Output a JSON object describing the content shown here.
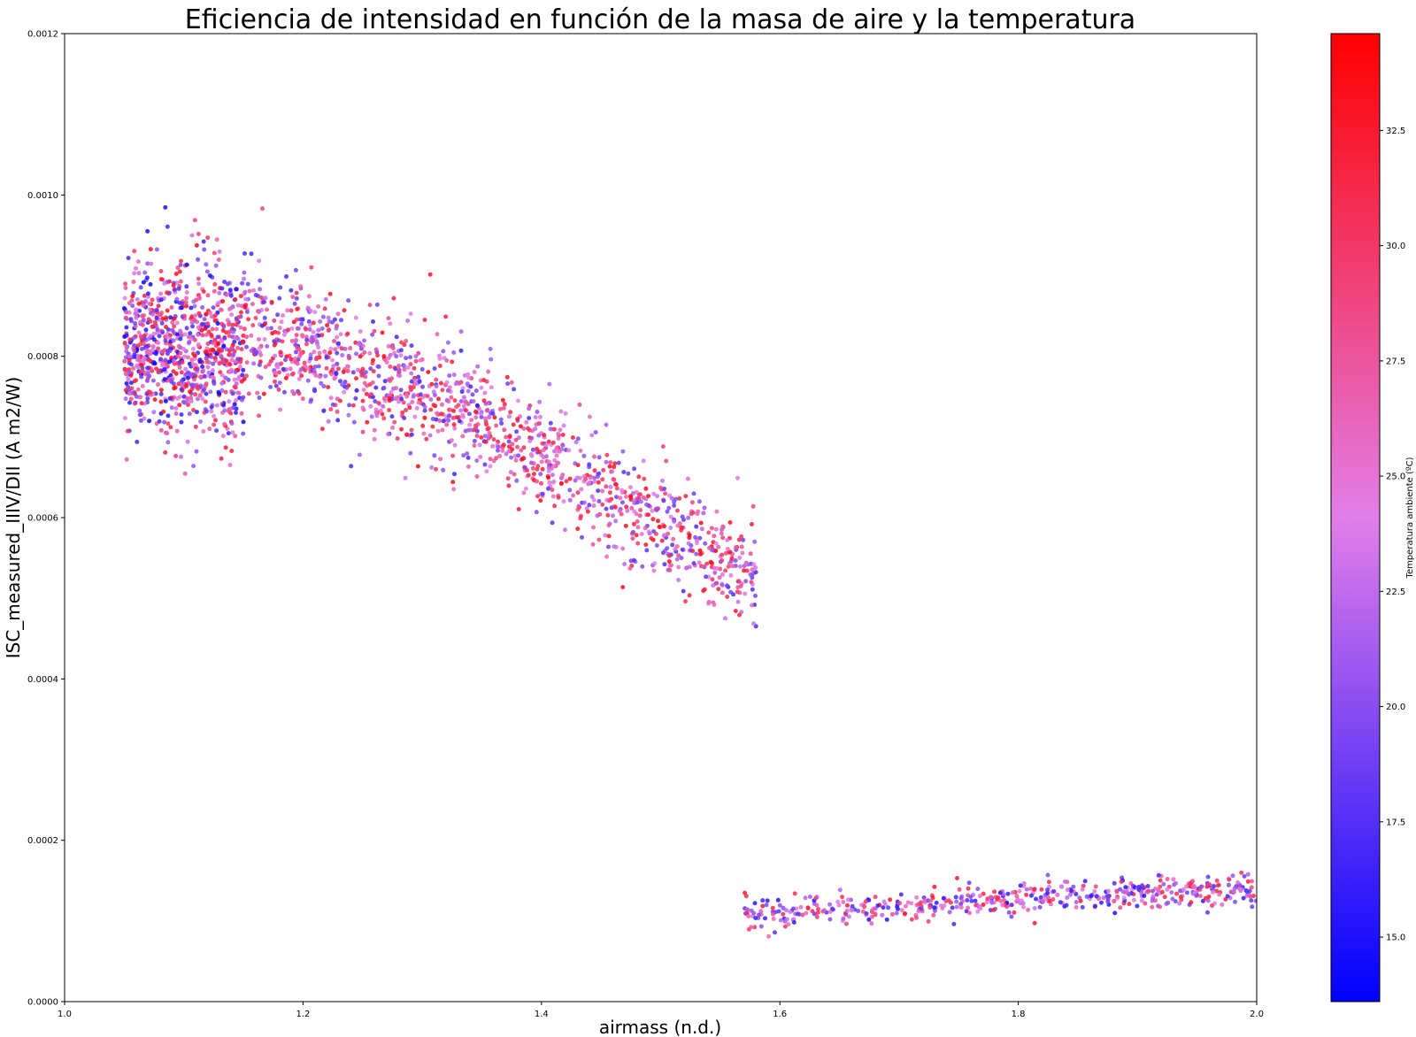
{
  "chart_data": {
    "type": "scatter",
    "title": "Eficiencia de intensidad en función de la masa de aire y la temperatura",
    "xlabel": "airmass (n.d.)",
    "ylabel": "ISC_measured_IIIV/DII (A m2/W)",
    "xlim": [
      1.0,
      2.0
    ],
    "ylim": [
      0.0,
      0.0012
    ],
    "xticks": [
      "1.0",
      "1.2",
      "1.4",
      "1.6",
      "1.8",
      "2.0"
    ],
    "yticks": [
      "0.0000",
      "0.0002",
      "0.0004",
      "0.0006",
      "0.0008",
      "0.0010",
      "0.0012"
    ],
    "grid": false,
    "legend": "none",
    "colorbar": {
      "label": "Temperatura ambiente (ºC)",
      "range": [
        13.6,
        34.6
      ],
      "ticks": [
        "15.0",
        "17.5",
        "20.0",
        "22.5",
        "25.0",
        "27.5",
        "30.0",
        "32.5"
      ],
      "colormap": [
        "#0000ff",
        "#e27ee9",
        "#ff0000"
      ]
    },
    "series": [
      {
        "clusters": [
          {
            "x_range": [
              1.05,
              1.15
            ],
            "y_center": 0.00081,
            "y_spread": 5e-05,
            "slope": 0.0,
            "t_range": [
              14,
              34
            ],
            "count": 900
          },
          {
            "x_range": [
              1.15,
              1.35
            ],
            "y_center": 0.00078,
            "y_spread": 4e-05,
            "slope": -0.00055,
            "t_range": [
              16,
              34
            ],
            "count": 700
          },
          {
            "x_range": [
              1.35,
              1.58
            ],
            "y_center": 0.00062,
            "y_spread": 3.5e-05,
            "slope": -0.00085,
            "t_range": [
              17,
              34
            ],
            "count": 650
          },
          {
            "x_range": [
              1.57,
              2.0
            ],
            "y_center": 0.000125,
            "y_spread": 1e-05,
            "slope": 8e-05,
            "t_range": [
              15,
              33
            ],
            "count": 520
          }
        ]
      }
    ]
  }
}
